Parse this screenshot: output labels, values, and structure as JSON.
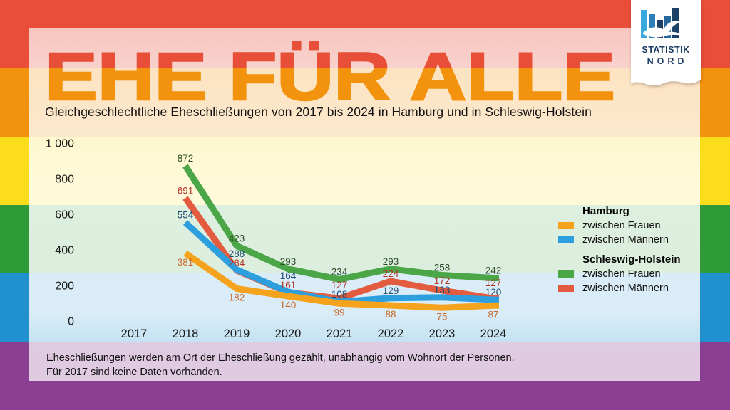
{
  "title": "EHE FÜR ALLE",
  "subtitle": "Gleichgeschlechtliche Eheschließungen von 2017 bis 2024 in Hamburg und in Schleswig-Holstein",
  "logo": {
    "line1": "STATISTIK",
    "line2": "NORD"
  },
  "footnote": {
    "line1": "Eheschließungen werden am Ort der Eheschließung gezählt, unabhängig vom Wohnort der Personen.",
    "line2": "Für 2017 sind keine Daten vorhanden."
  },
  "colors": {
    "stripe_red": "#E94E3A",
    "stripe_orange": "#F3920D",
    "stripe_yellow": "#FCDD1C",
    "stripe_green": "#2F9B38",
    "stripe_blue": "#2090CE",
    "stripe_purple": "#8A3F92",
    "title_top": "#E84F38",
    "title_bottom": "#F3920D",
    "logo_navy": "#1C3E66",
    "logo_lightblue": "#37A9DC",
    "logo_midblue": "#2C7EB8"
  },
  "chart_data": {
    "type": "line",
    "title": "EHE FÜR ALLE",
    "subtitle": "Gleichgeschlechtliche Eheschließungen von 2017 bis 2024 in Hamburg und in Schleswig-Holstein",
    "categories": [
      "2017",
      "2018",
      "2019",
      "2020",
      "2021",
      "2022",
      "2023",
      "2024"
    ],
    "ylim": [
      0,
      1000
    ],
    "ytick_values": [
      0,
      200,
      400,
      600,
      800,
      1000
    ],
    "ytick_labels": [
      "0",
      "200",
      "400",
      "600",
      "800",
      "1 000"
    ],
    "grid": false,
    "legend_position": "right",
    "note": "2017: no data",
    "series": [
      {
        "name": "Hamburg zwischen Frauen",
        "region": "Hamburg",
        "label": "zwischen Frauen",
        "color": "#F5A31C",
        "label_color": "#C8692A",
        "values": [
          null,
          381,
          182,
          140,
          99,
          88,
          75,
          87
        ]
      },
      {
        "name": "Hamburg zwischen Männern",
        "region": "Hamburg",
        "label": "zwischen Männern",
        "color": "#2D9FDE",
        "label_color": "#1E4A73",
        "values": [
          null,
          554,
          288,
          164,
          108,
          129,
          133,
          120
        ]
      },
      {
        "name": "Schleswig-Holstein zwischen Frauen",
        "region": "Schleswig-Holstein",
        "label": "zwischen Frauen",
        "color": "#4BA648",
        "label_color": "#2C4B24",
        "values": [
          null,
          872,
          423,
          293,
          234,
          293,
          258,
          242
        ]
      },
      {
        "name": "Schleswig-Holstein zwischen Männern",
        "region": "Schleswig-Holstein",
        "label": "zwischen Männern",
        "color": "#E45C40",
        "label_color": "#B23226",
        "values": [
          null,
          691,
          284,
          161,
          127,
          224,
          172,
          127
        ]
      }
    ],
    "legend": {
      "groups": [
        {
          "title": "Hamburg",
          "items": [
            {
              "label": "zwischen Frauen",
              "series": 0
            },
            {
              "label": "zwischen Männern",
              "series": 1
            }
          ]
        },
        {
          "title": "Schleswig-Holstein",
          "items": [
            {
              "label": "zwischen Frauen",
              "series": 2
            },
            {
              "label": "zwischen Männern",
              "series": 3
            }
          ]
        }
      ]
    }
  }
}
